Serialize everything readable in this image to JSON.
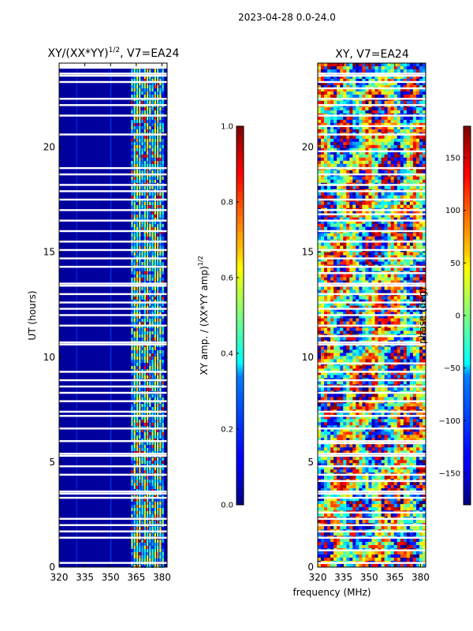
{
  "suptitle": "2023-04-28 0.0-24.0",
  "xlabel_shared": "frequency (MHz)",
  "chart_data": [
    {
      "type": "heatmap",
      "title_main": "XY/(XX*YY)",
      "title_sup": "1/2",
      "title_rest": ", V7=EA24",
      "ylabel": "UT (hours)",
      "xlim": [
        320,
        383
      ],
      "ylim": [
        0,
        24
      ],
      "xticks": [
        320,
        335,
        350,
        365,
        380
      ],
      "yticks": [
        0,
        5,
        10,
        15,
        20
      ],
      "colorbar": {
        "label_main": "XY amp. / (XX*YY amp)",
        "label_sup": "1/2",
        "range": [
          0.0,
          1.0
        ],
        "ticks": [
          "0.0",
          "0.2",
          "0.4",
          "0.6",
          "0.8",
          "1.0"
        ],
        "tick_values": [
          0.0,
          0.2,
          0.4,
          0.6,
          0.8,
          1.0
        ],
        "colormap": "jet"
      }
    },
    {
      "type": "heatmap",
      "title": "XY, V7=EA24",
      "xlim": [
        320,
        383
      ],
      "ylim": [
        0,
        24
      ],
      "xticks": [
        320,
        335,
        350,
        365,
        380
      ],
      "yticks": [
        0,
        5,
        10,
        15,
        20
      ],
      "colorbar": {
        "label": "phase (deg)",
        "range": [
          -180,
          180
        ],
        "ticks": [
          "−150",
          "−100",
          "−50",
          "0",
          "50",
          "100",
          "150"
        ],
        "tick_values": [
          -150,
          -100,
          -50,
          0,
          50,
          100,
          150
        ],
        "colormap": "jet"
      }
    }
  ]
}
